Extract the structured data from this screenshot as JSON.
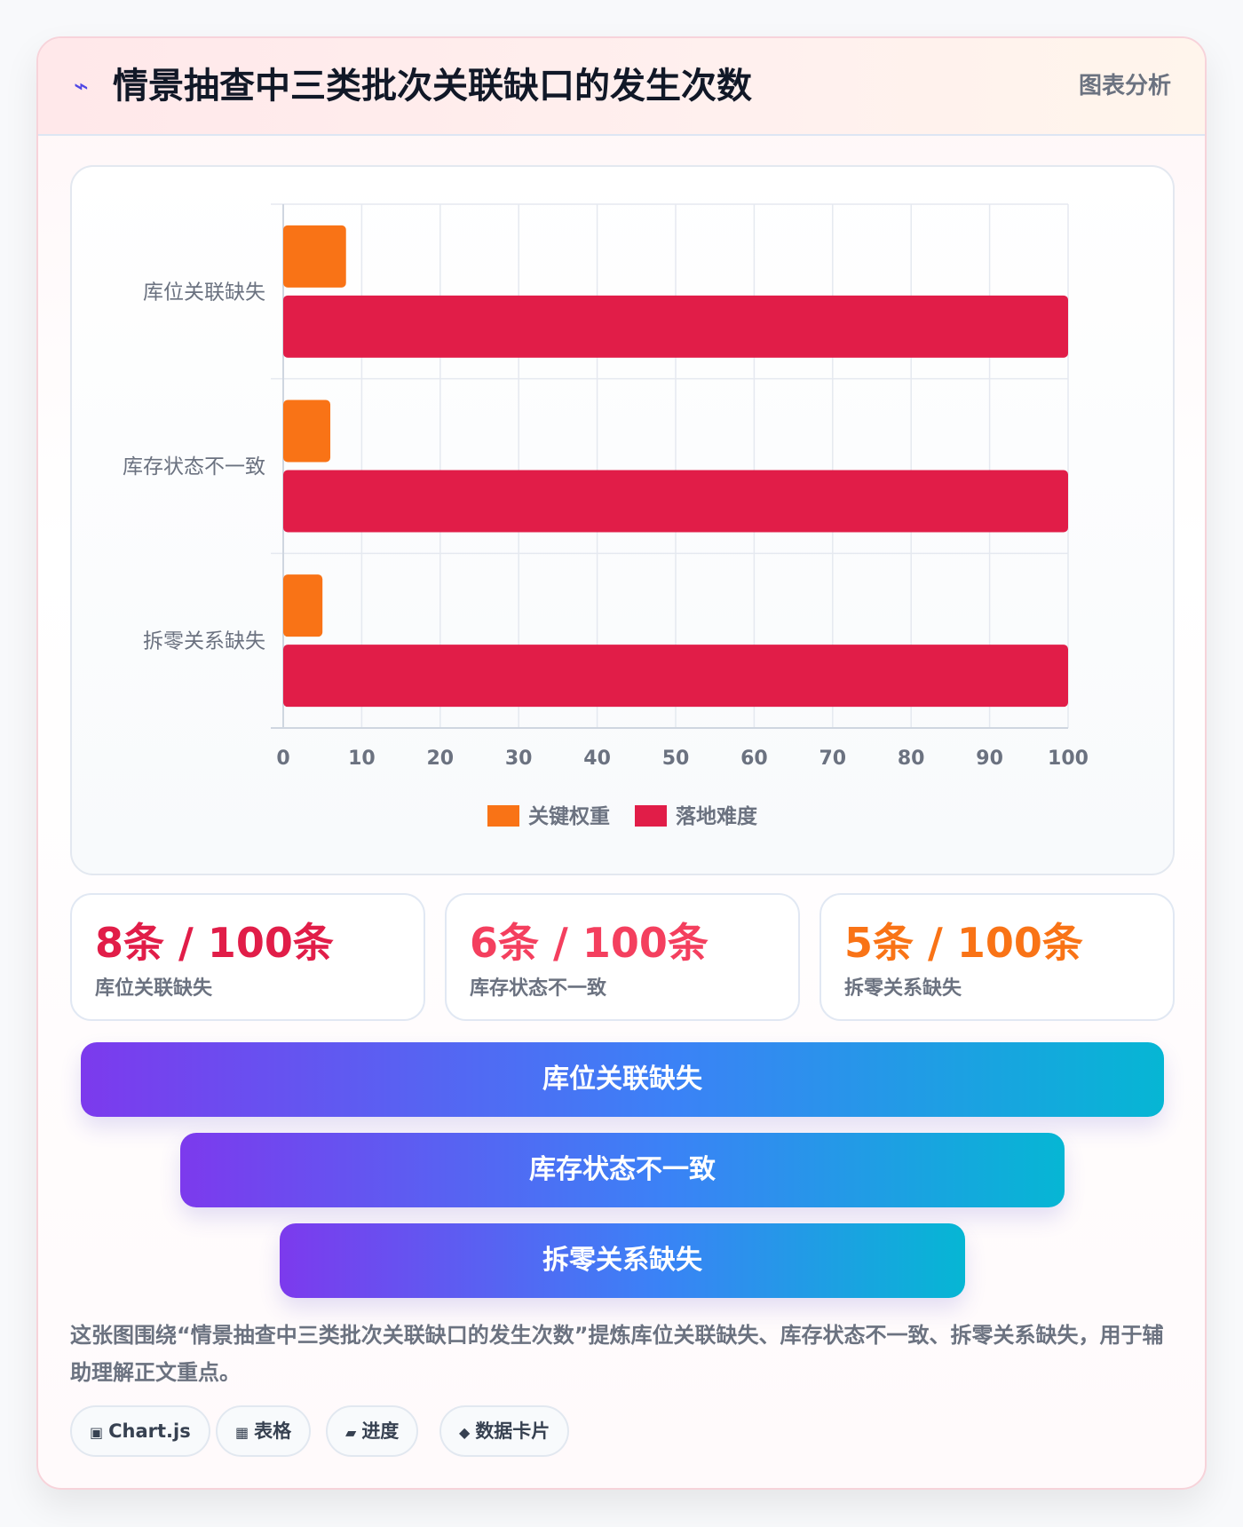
{
  "header": {
    "icon": "lightning-icon",
    "title": "情景抽查中三类批次关联缺口的发生次数",
    "tag": "图表分析"
  },
  "chart_data": {
    "type": "bar",
    "orientation": "horizontal",
    "categories": [
      "库位关联缺失",
      "库存状态不一致",
      "拆零关系缺失"
    ],
    "series": [
      {
        "name": "关键权重",
        "values": [
          8,
          6,
          5
        ],
        "color": "#f97316"
      },
      {
        "name": "落地难度",
        "values": [
          100,
          100,
          100
        ],
        "color": "#e11d48"
      }
    ],
    "xlim": [
      0,
      100
    ],
    "xticks": [
      0,
      10,
      20,
      30,
      40,
      50,
      60,
      70,
      80,
      90,
      100
    ],
    "grid": true,
    "legend_position": "bottom"
  },
  "stats": [
    {
      "value": "8条 / 100条",
      "label": "库位关联缺失",
      "color": "#e11d48"
    },
    {
      "value": "6条 / 100条",
      "label": "库存状态不一致",
      "color": "#f43f5e"
    },
    {
      "value": "5条 / 100条",
      "label": "拆零关系缺失",
      "color": "#f97316"
    }
  ],
  "funnel": [
    "库位关联缺失",
    "库存状态不一致",
    "拆零关系缺失"
  ],
  "description": "这张图围绕“情景抽查中三类批次关联缺口的发生次数”提炼库位关联缺失、库存状态不一致、拆零关系缺失，用于辅助理解正文重点。",
  "tags": [
    {
      "icon": "▣",
      "label": "Chart.js"
    },
    {
      "icon": "▦",
      "label": "表格"
    },
    {
      "icon": "▰",
      "label": "进度"
    },
    {
      "icon": "◆",
      "label": "数据卡片"
    }
  ]
}
